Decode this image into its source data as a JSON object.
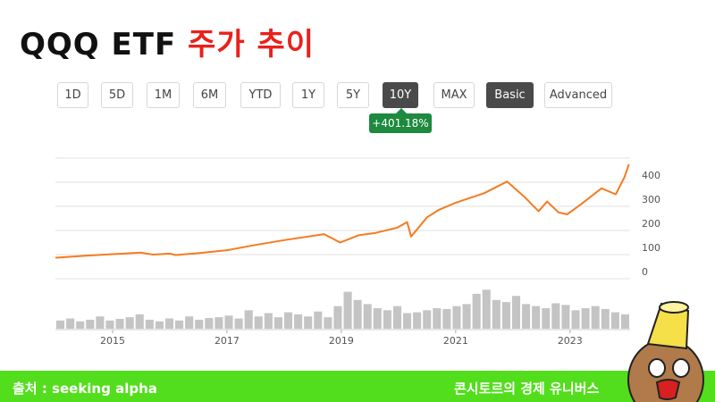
{
  "header": {
    "title": "QQQ ETF",
    "title_accent": "주가 추이"
  },
  "toolbar": {
    "buttons": [
      {
        "label": "1D"
      },
      {
        "label": "5D"
      },
      {
        "label": "1M"
      },
      {
        "label": "6M"
      },
      {
        "label": "YTD"
      },
      {
        "label": "1Y"
      },
      {
        "label": "5Y"
      },
      {
        "label": "10Y",
        "active": true
      },
      {
        "label": "MAX"
      },
      {
        "label": "Basic",
        "active": true
      },
      {
        "label": "Advanced"
      }
    ],
    "badge": "+401.18%"
  },
  "chart_data": {
    "type": "line",
    "x": [
      2014.0,
      2014.5,
      2015.0,
      2015.5,
      2015.7,
      2016.0,
      2016.1,
      2016.5,
      2017.0,
      2017.5,
      2018.0,
      2018.7,
      2018.98,
      2019.3,
      2019.6,
      2019.98,
      2020.15,
      2020.22,
      2020.5,
      2020.7,
      2021.0,
      2021.5,
      2021.9,
      2022.2,
      2022.45,
      2022.6,
      2022.8,
      2022.95,
      2023.2,
      2023.55,
      2023.8,
      2023.95,
      2024.03
    ],
    "series": [
      {
        "color": "#f47b20",
        "values": [
          87,
          95,
          102,
          108,
          100,
          104,
          98,
          106,
          118,
          140,
          160,
          185,
          150,
          180,
          190,
          212,
          235,
          175,
          255,
          285,
          315,
          355,
          403,
          340,
          280,
          320,
          275,
          267,
          310,
          375,
          350,
          420,
          475
        ]
      }
    ],
    "xlim": [
      2014.0,
      2024.05
    ],
    "xticks": [
      2015,
      2017,
      2019,
      2021,
      2023
    ],
    "ylim": [
      0,
      500
    ],
    "yticks": [
      0,
      100,
      200,
      300,
      400
    ],
    "grid": true,
    "volume": {
      "color": "#c4c4c4",
      "ylim": [
        0,
        100
      ],
      "values": [
        20,
        25,
        18,
        22,
        30,
        20,
        24,
        28,
        35,
        22,
        18,
        25,
        20,
        30,
        22,
        26,
        28,
        32,
        25,
        45,
        30,
        38,
        28,
        40,
        35,
        30,
        42,
        28,
        55,
        90,
        70,
        60,
        50,
        45,
        55,
        38,
        40,
        45,
        50,
        48,
        55,
        60,
        85,
        95,
        70,
        65,
        80,
        60,
        55,
        50,
        62,
        58,
        45,
        50,
        55,
        48,
        40,
        35
      ]
    }
  },
  "footer": {
    "source": "출처 : seeking alpha",
    "brand": "콘시토르의 경제 유니버스"
  }
}
